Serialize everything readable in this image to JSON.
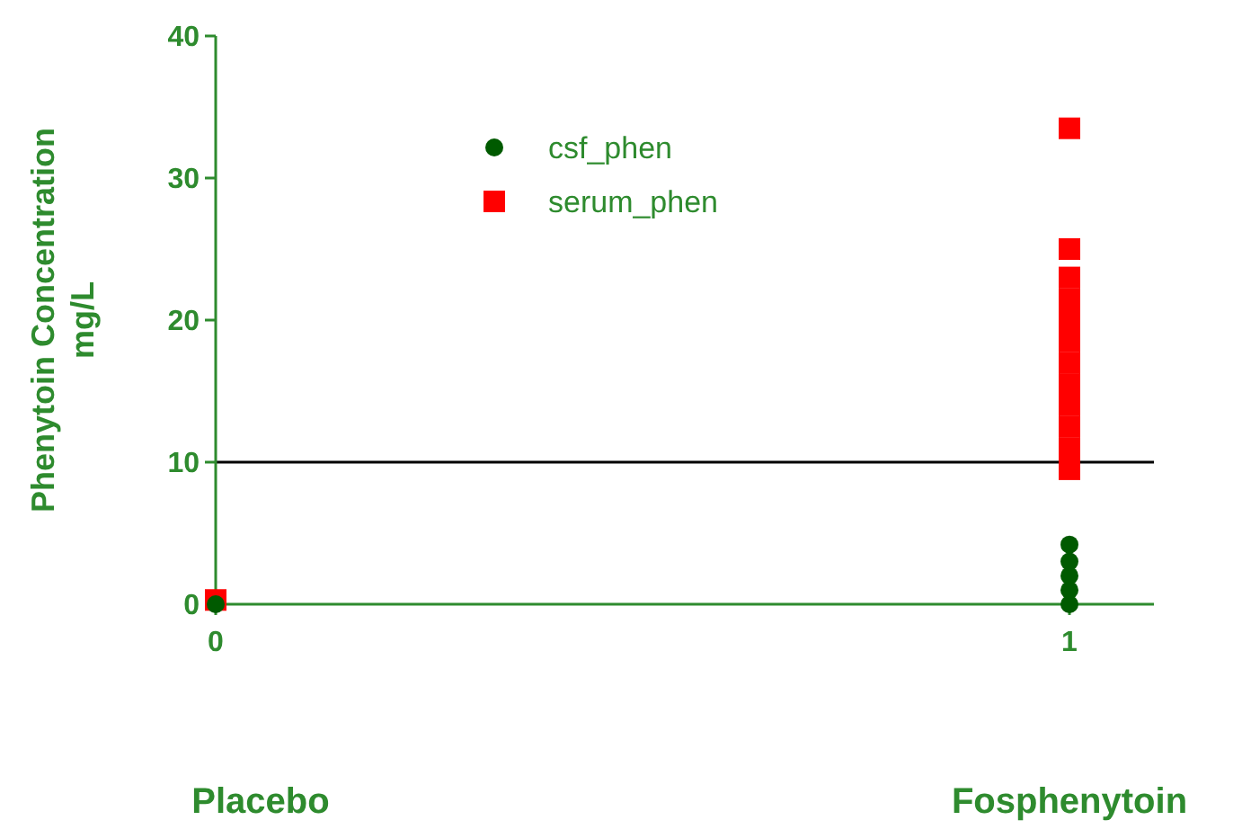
{
  "chart_data": {
    "type": "scatter",
    "ylabel": "Phenytoin Concentration\nmg/L",
    "categories": [
      "0",
      "1"
    ],
    "ylim": [
      0,
      40
    ],
    "yticks": [
      0,
      10,
      20,
      30,
      40
    ],
    "legend": "top",
    "grid": false,
    "series": [
      {
        "name": "csf_phen",
        "color": "#005a00",
        "marker": "circle",
        "x": [
          "0",
          "1",
          "1",
          "1",
          "1",
          "1"
        ],
        "values": [
          0,
          0,
          1,
          2,
          3,
          4.2
        ]
      },
      {
        "name": "serum_phen",
        "color": "#ff0000",
        "marker": "square",
        "x": [
          "0",
          "1",
          "1",
          "1",
          "1",
          "1",
          "1",
          "1",
          "1",
          "1",
          "1",
          "1",
          "1"
        ],
        "values": [
          0.3,
          9.5,
          11,
          12.5,
          14,
          15.5,
          17,
          18.5,
          20,
          21.5,
          23,
          25,
          33.5
        ]
      }
    ],
    "ref_lines": [
      {
        "axis": "y",
        "value": 10,
        "color": "#000000"
      }
    ],
    "annotations": [
      "Placebo",
      "Fosphenytoin"
    ]
  }
}
